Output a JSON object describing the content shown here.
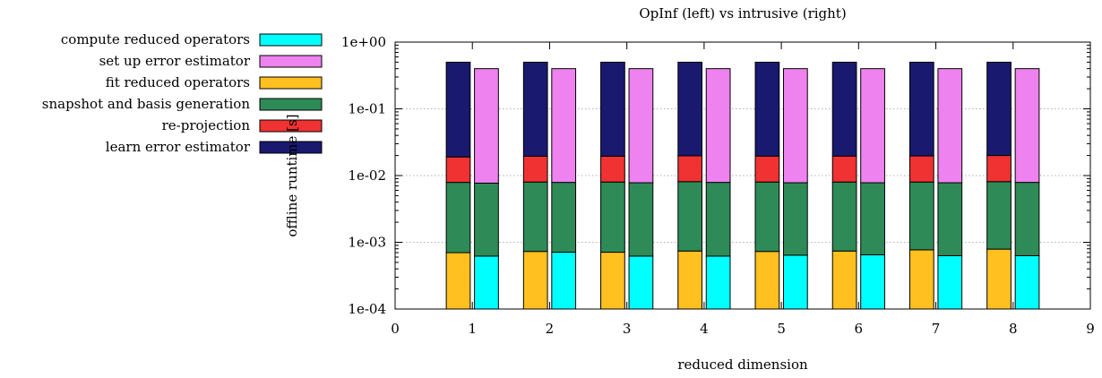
{
  "chart_data": {
    "type": "bar",
    "stacked": true,
    "title": "OpInf (left) vs intrusive (right)",
    "xlabel": "reduced dimension",
    "ylabel": "offline runtime [s]",
    "xlim": [
      0,
      9
    ],
    "xticks": [
      "0",
      "1",
      "2",
      "3",
      "4",
      "5",
      "6",
      "7",
      "8",
      "9"
    ],
    "ylim": [
      0.0001,
      1
    ],
    "yscale": "log",
    "yticks": [
      {
        "value": 0.0001,
        "label": "1e-04"
      },
      {
        "value": 0.001,
        "label": "1e-03"
      },
      {
        "value": 0.01,
        "label": "1e-02"
      },
      {
        "value": 0.1,
        "label": "1e-01"
      },
      {
        "value": 1,
        "label": "1e+00"
      }
    ],
    "grid": true,
    "legend_position": "outside-left",
    "legend": [
      {
        "label": "compute reduced operators",
        "color": "#00ffff"
      },
      {
        "label": "set up error estimator",
        "color": "#ee82ee"
      },
      {
        "label": "fit reduced operators",
        "color": "#ffc020"
      },
      {
        "label": "snapshot and basis generation",
        "color": "#2e8b57"
      },
      {
        "label": "re-projection",
        "color": "#f03232"
      },
      {
        "label": "learn error estimator",
        "color": "#191970"
      }
    ],
    "categories": [
      1,
      2,
      3,
      4,
      5,
      6,
      7,
      8
    ],
    "groups": [
      {
        "name": "OpInf",
        "segments": [
          {
            "component": "fit reduced operators",
            "color": "#ffc020",
            "tops": [
              0.0007,
              0.00073,
              0.00071,
              0.00074,
              0.00073,
              0.00074,
              0.00077,
              0.00079
            ]
          },
          {
            "component": "snapshot and basis generation",
            "color": "#2e8b57",
            "tops": [
              0.0079,
              0.008,
              0.008,
              0.0081,
              0.008,
              0.008,
              0.008,
              0.0081
            ]
          },
          {
            "component": "re-projection",
            "color": "#f03232",
            "tops": [
              0.019,
              0.0195,
              0.0195,
              0.0198,
              0.0196,
              0.0196,
              0.0197,
              0.02
            ]
          },
          {
            "component": "learn error estimator",
            "color": "#191970",
            "tops": [
              0.5,
              0.5,
              0.5,
              0.5,
              0.5,
              0.5,
              0.5,
              0.5
            ]
          }
        ]
      },
      {
        "name": "intrusive",
        "segments": [
          {
            "component": "compute reduced operators",
            "color": "#00ffff",
            "tops": [
              0.00062,
              0.00071,
              0.00062,
              0.00062,
              0.00064,
              0.00065,
              0.00063,
              0.00063
            ]
          },
          {
            "component": "snapshot and basis generation",
            "color": "#2e8b57",
            "tops": [
              0.0077,
              0.0079,
              0.0078,
              0.0079,
              0.0078,
              0.0078,
              0.0078,
              0.0079
            ]
          },
          {
            "component": "set up error estimator",
            "color": "#ee82ee",
            "tops": [
              0.4,
              0.4,
              0.4,
              0.4,
              0.4,
              0.4,
              0.4,
              0.4
            ]
          }
        ]
      }
    ]
  }
}
